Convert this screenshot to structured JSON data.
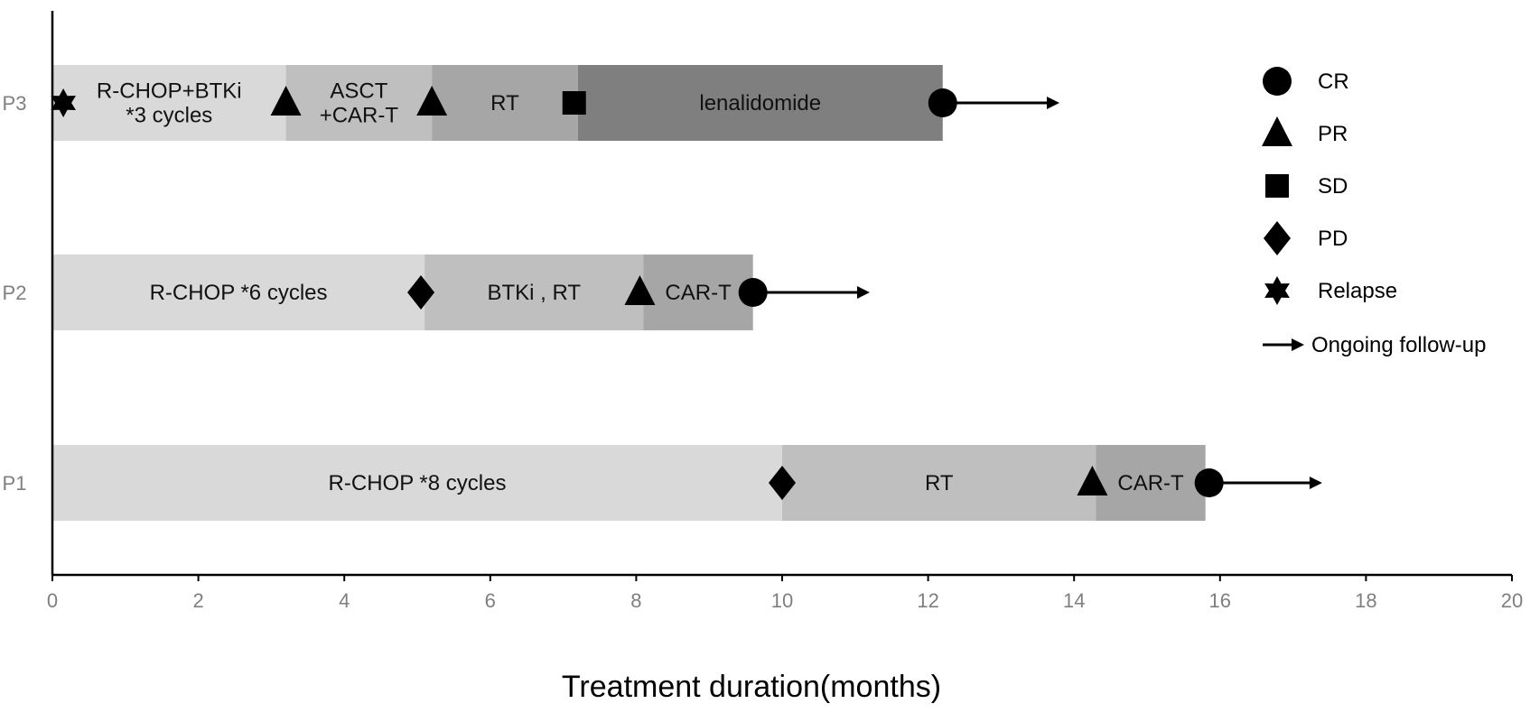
{
  "chart_data": {
    "type": "swimmer",
    "xlabel": "Treatment duration(months)",
    "xlim": [
      0,
      20
    ],
    "xticks": [
      0,
      2,
      4,
      6,
      8,
      10,
      12,
      14,
      16,
      18,
      20
    ],
    "grid": false,
    "legend_position": "right",
    "patients": [
      {
        "name": "P3",
        "segments": [
          {
            "start": 0,
            "end": 3.2,
            "label": [
              "R-CHOP+BTKi",
              "*3 cycles"
            ],
            "color": "#d9d9d9"
          },
          {
            "start": 3.2,
            "end": 5.2,
            "label": [
              "ASCT",
              "+CAR-T"
            ],
            "color": "#bfbfbf"
          },
          {
            "start": 5.2,
            "end": 7.2,
            "label": [
              "RT"
            ],
            "color": "#a6a6a6"
          },
          {
            "start": 7.2,
            "end": 12.2,
            "label": [
              "lenalidomide"
            ],
            "color": "#7f7f7f"
          }
        ],
        "events": [
          {
            "x": 0.15,
            "type": "Relapse"
          },
          {
            "x": 3.2,
            "type": "PR"
          },
          {
            "x": 5.2,
            "type": "PR"
          },
          {
            "x": 7.15,
            "type": "SD"
          },
          {
            "x": 12.2,
            "type": "CR"
          }
        ],
        "followup_end": 13.8
      },
      {
        "name": "P2",
        "segments": [
          {
            "start": 0,
            "end": 5.1,
            "label": [
              "R-CHOP *6 cycles"
            ],
            "color": "#d9d9d9"
          },
          {
            "start": 5.1,
            "end": 8.1,
            "label": [
              "BTKi , RT"
            ],
            "color": "#bfbfbf"
          },
          {
            "start": 8.1,
            "end": 9.6,
            "label": [
              "CAR-T"
            ],
            "color": "#a6a6a6"
          }
        ],
        "events": [
          {
            "x": 5.05,
            "type": "PD"
          },
          {
            "x": 8.05,
            "type": "PR"
          },
          {
            "x": 9.6,
            "type": "CR"
          }
        ],
        "followup_end": 11.2
      },
      {
        "name": "P1",
        "segments": [
          {
            "start": 0,
            "end": 10.0,
            "label": [
              "R-CHOP *8 cycles"
            ],
            "color": "#d9d9d9"
          },
          {
            "start": 10.0,
            "end": 14.3,
            "label": [
              "RT"
            ],
            "color": "#bfbfbf"
          },
          {
            "start": 14.3,
            "end": 15.8,
            "label": [
              "CAR-T"
            ],
            "color": "#a6a6a6"
          }
        ],
        "events": [
          {
            "x": 10.0,
            "type": "PD"
          },
          {
            "x": 14.25,
            "type": "PR"
          },
          {
            "x": 15.85,
            "type": "CR"
          }
        ],
        "followup_end": 17.4
      }
    ],
    "legend": [
      {
        "type": "CR",
        "label": "CR"
      },
      {
        "type": "PR",
        "label": "PR"
      },
      {
        "type": "SD",
        "label": "SD"
      },
      {
        "type": "PD",
        "label": "PD"
      },
      {
        "type": "Relapse",
        "label": "Relapse"
      },
      {
        "type": "Arrow",
        "label": "Ongoing follow-up"
      }
    ]
  }
}
